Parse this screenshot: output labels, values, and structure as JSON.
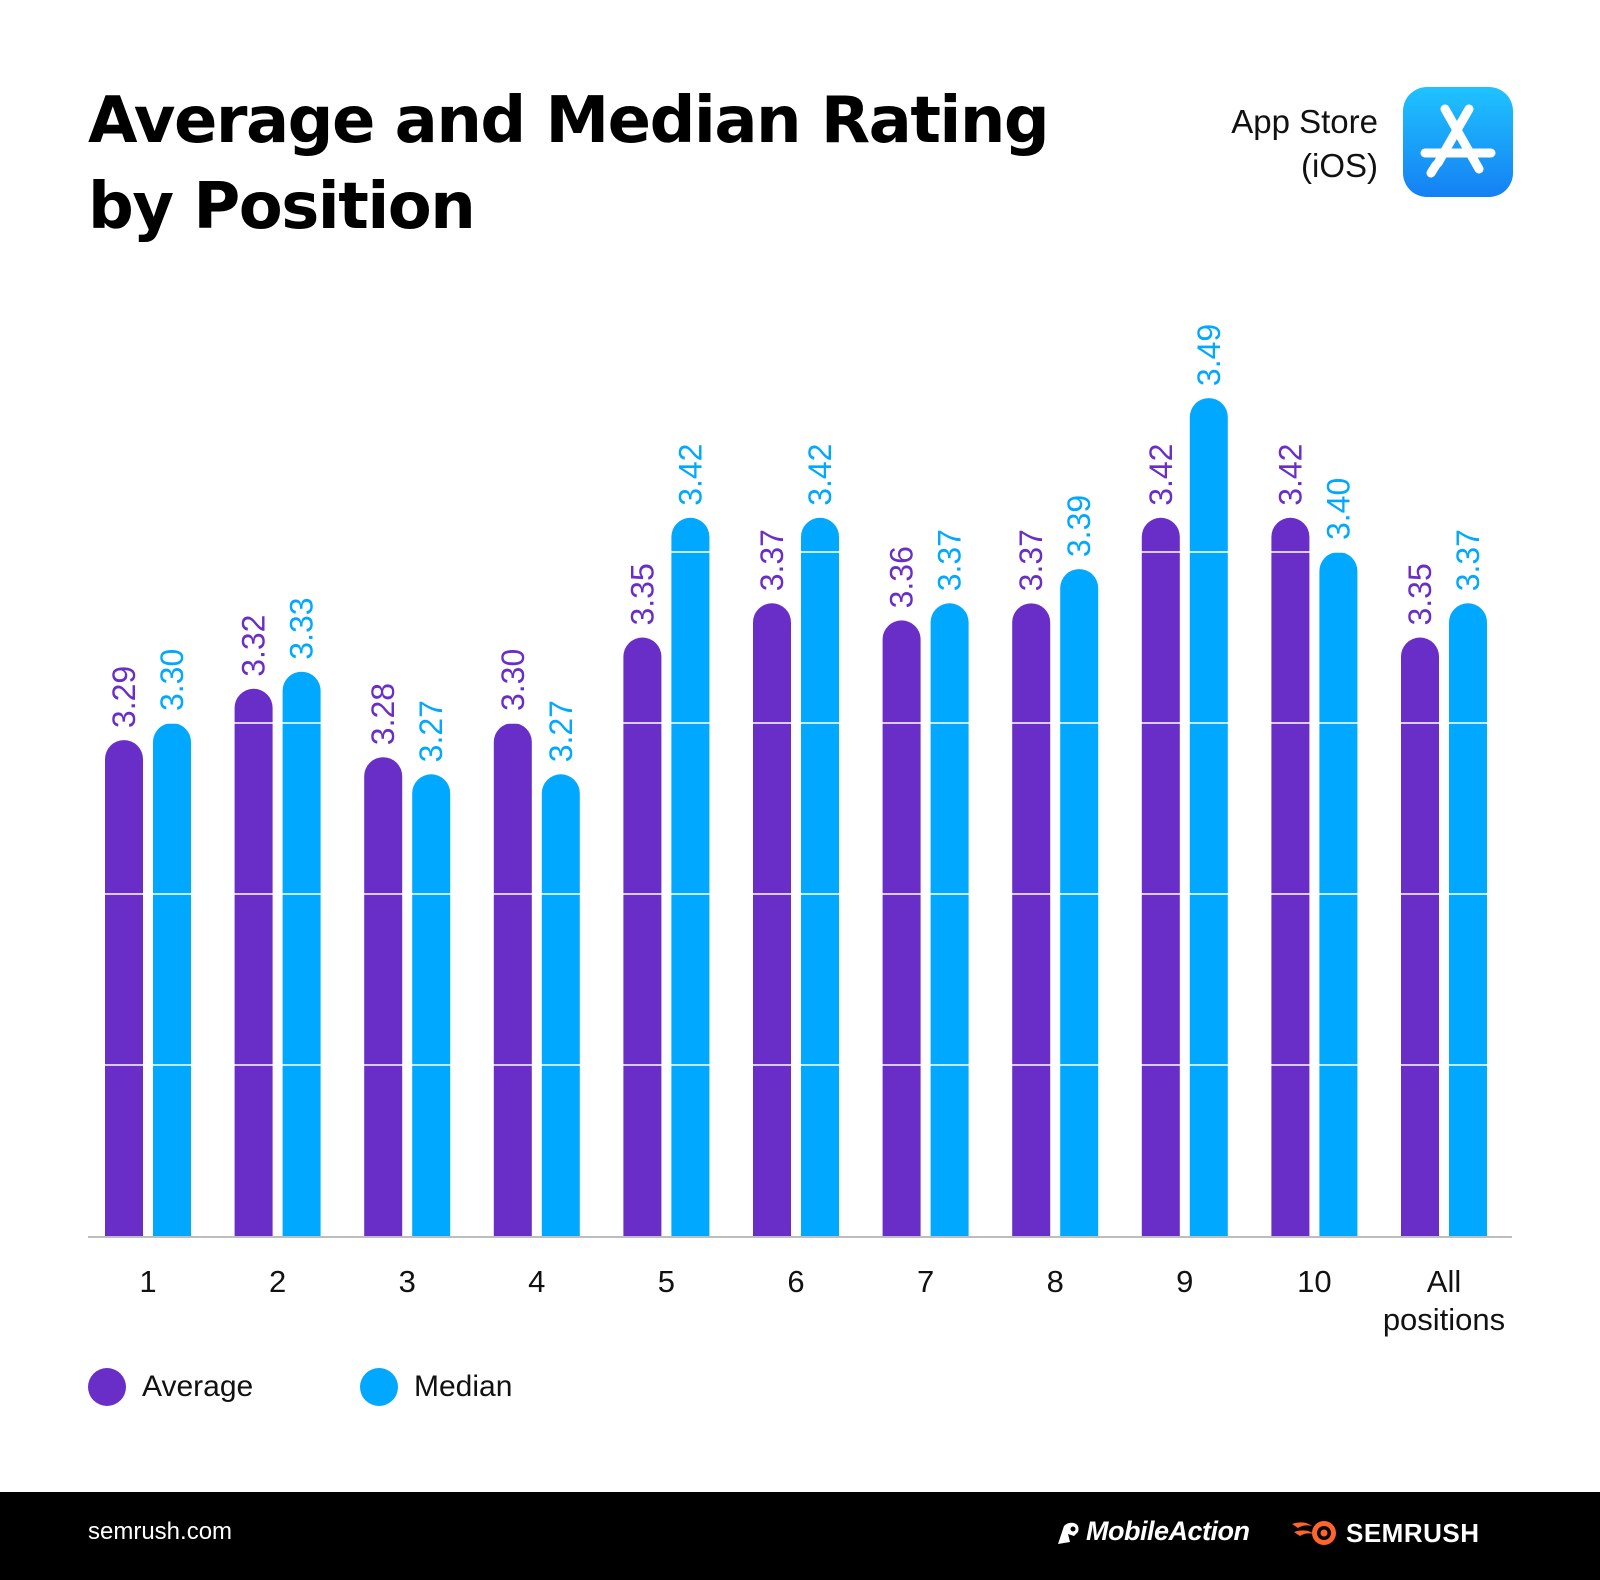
{
  "header": {
    "title_line1": "Average and Median Rating",
    "title_line2": "by Position",
    "store_line1": "App Store",
    "store_line2": "(iOS)",
    "store_icon": "app-store-icon"
  },
  "colors": {
    "average": "#6a2ec8",
    "median": "#00a8ff",
    "gridline": "#ffffff",
    "axis": "#bdbdbd",
    "footer_bg": "#000000",
    "semrush_orange": "#ff642d"
  },
  "chart_data": {
    "type": "bar",
    "title": "Average and Median Rating by Position",
    "subtitle": "App Store (iOS)",
    "categories": [
      "1",
      "2",
      "3",
      "4",
      "5",
      "6",
      "7",
      "8",
      "9",
      "10",
      "All positions"
    ],
    "series": [
      {
        "name": "Average",
        "values": [
          3.29,
          3.32,
          3.28,
          3.3,
          3.35,
          3.37,
          3.36,
          3.37,
          3.42,
          3.42,
          3.35
        ]
      },
      {
        "name": "Median",
        "values": [
          3.3,
          3.33,
          3.27,
          3.27,
          3.42,
          3.42,
          3.37,
          3.39,
          3.49,
          3.4,
          3.37
        ]
      }
    ],
    "value_labels": [
      [
        "3.29",
        "3.32",
        "3.28",
        "3.30",
        "3.35",
        "3.37",
        "3.36",
        "3.37",
        "3.42",
        "3.42",
        "3.35"
      ],
      [
        "3.30",
        "3.33",
        "3.27",
        "3.27",
        "3.42",
        "3.42",
        "3.37",
        "3.39",
        "3.49",
        "3.40",
        "3.37"
      ]
    ],
    "xlabel": "",
    "ylabel": "",
    "ylim": [
      3.0,
      3.5
    ],
    "gridlines": [
      3.1,
      3.2,
      3.3,
      3.4
    ],
    "legend_position": "bottom-left"
  },
  "legend": {
    "items": [
      {
        "label": "Average"
      },
      {
        "label": "Median"
      }
    ]
  },
  "footer": {
    "url": "semrush.com",
    "mobileaction_label": "MobileAction",
    "semrush_label": "SEMRUSH"
  }
}
